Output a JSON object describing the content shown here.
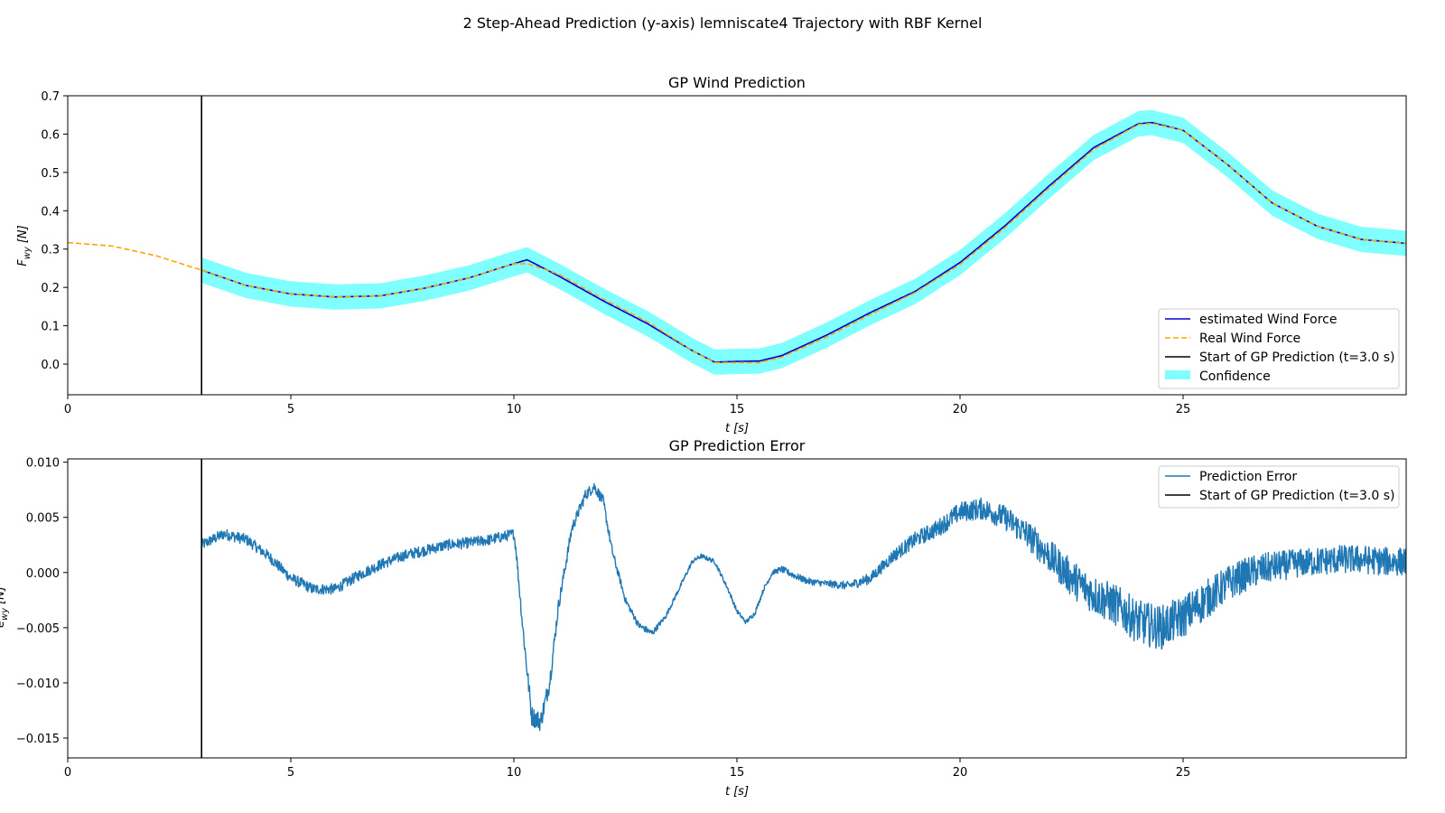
{
  "suptitle": "2 Step-Ahead Prediction (y-axis) lemniscate4 Trajectory with RBF Kernel",
  "colors": {
    "estimated": "#0000cd",
    "real": "#ffa500",
    "confidence": "#00ffff",
    "start_line": "#000000",
    "error": "#1f77b4"
  },
  "chart_data": [
    {
      "type": "line",
      "title": "GP Wind Prediction",
      "xlabel_var": "t",
      "xlabel_unit": "[s]",
      "ylabel_var": "F",
      "ylabel_sub": "wy",
      "ylabel_unit": "[N]",
      "xlim": [
        0,
        30
      ],
      "ylim": [
        -0.08,
        0.7
      ],
      "xticks": [
        0,
        5,
        10,
        15,
        20,
        25
      ],
      "xtick_labels": [
        "0",
        "5",
        "10",
        "15",
        "20",
        "25"
      ],
      "yticks": [
        0.0,
        0.1,
        0.2,
        0.3,
        0.4,
        0.5,
        0.6,
        0.7
      ],
      "ytick_labels": [
        "0.0",
        "0.1",
        "0.2",
        "0.3",
        "0.4",
        "0.5",
        "0.6",
        "0.7"
      ],
      "grid": false,
      "legend_position": "lower right",
      "start_time": 3.0,
      "confidence_halfwidth": 0.033,
      "series": [
        {
          "name": "estimated Wind Force",
          "style": "solid",
          "x": [
            3,
            4,
            5,
            6,
            7,
            8,
            9,
            10,
            10.3,
            11,
            12,
            13,
            14,
            14.5,
            15,
            15.5,
            16,
            17,
            18,
            19,
            20,
            21,
            22,
            23,
            24,
            24.3,
            25,
            26,
            27,
            28,
            29,
            30
          ],
          "y": [
            0.245,
            0.205,
            0.183,
            0.175,
            0.178,
            0.198,
            0.225,
            0.262,
            0.272,
            0.23,
            0.165,
            0.105,
            0.035,
            0.005,
            0.007,
            0.008,
            0.022,
            0.075,
            0.135,
            0.19,
            0.265,
            0.36,
            0.465,
            0.565,
            0.627,
            0.63,
            0.61,
            0.52,
            0.42,
            0.36,
            0.325,
            0.315
          ]
        },
        {
          "name": "Real Wind Force",
          "style": "dashed",
          "x": [
            0,
            1,
            2,
            3,
            4,
            5,
            6,
            7,
            8,
            9,
            10,
            10.3,
            11,
            12,
            13,
            14,
            14.5,
            15,
            15.5,
            16,
            17,
            18,
            19,
            20,
            21,
            22,
            23,
            24,
            24.3,
            25,
            26,
            27,
            28,
            29,
            30
          ],
          "y": [
            0.317,
            0.308,
            0.282,
            0.245,
            0.205,
            0.183,
            0.175,
            0.178,
            0.198,
            0.225,
            0.262,
            0.262,
            0.235,
            0.17,
            0.11,
            0.035,
            0.004,
            0.004,
            0.004,
            0.018,
            0.07,
            0.13,
            0.187,
            0.26,
            0.355,
            0.46,
            0.56,
            0.625,
            0.628,
            0.61,
            0.52,
            0.42,
            0.36,
            0.325,
            0.315
          ]
        },
        {
          "name": "Start of GP Prediction (t=3.0 s)",
          "style": "vline"
        },
        {
          "name": "Confidence",
          "style": "band"
        }
      ]
    },
    {
      "type": "line",
      "title": "GP Prediction Error",
      "xlabel_var": "t",
      "xlabel_unit": "[s]",
      "ylabel_var": "e",
      "ylabel_sub": "wy",
      "ylabel_unit": "[N]",
      "xlim": [
        0,
        30
      ],
      "ylim": [
        -0.0168,
        0.0103
      ],
      "xticks": [
        0,
        5,
        10,
        15,
        20,
        25
      ],
      "xtick_labels": [
        "0",
        "5",
        "10",
        "15",
        "20",
        "25"
      ],
      "yticks": [
        -0.015,
        -0.01,
        -0.005,
        0.0,
        0.005,
        0.01
      ],
      "ytick_labels": [
        "−0.015",
        "−0.010",
        "−0.005",
        "0.000",
        "0.005",
        "0.010"
      ],
      "grid": false,
      "legend_position": "upper right",
      "start_time": 3.0,
      "series": [
        {
          "name": "Prediction Error",
          "x": [
            3,
            3.5,
            4,
            4.5,
            5,
            5.5,
            6,
            6.5,
            7,
            7.5,
            8,
            8.5,
            9,
            9.5,
            10,
            10.05,
            10.2,
            10.4,
            10.6,
            10.8,
            11,
            11.3,
            11.6,
            11.8,
            12,
            12.2,
            12.5,
            12.8,
            13.1,
            13.4,
            13.7,
            14,
            14.2,
            14.5,
            14.8,
            15,
            15.2,
            15.4,
            15.6,
            15.8,
            16,
            16.3,
            16.6,
            17,
            17.5,
            18,
            18.5,
            19,
            19.5,
            20,
            20.5,
            21,
            21.5,
            22,
            22.5,
            23,
            23.5,
            24,
            24.5,
            25,
            25.5,
            26,
            26.5,
            27,
            27.5,
            28,
            28.5,
            29,
            29.5,
            30
          ],
          "y": [
            0.0025,
            0.0035,
            0.003,
            0.0015,
            -0.0005,
            -0.0015,
            -0.0015,
            -0.0003,
            0.0007,
            0.0015,
            0.002,
            0.0025,
            0.0027,
            0.003,
            0.0035,
            0.002,
            -0.005,
            -0.013,
            -0.0135,
            -0.01,
            -0.003,
            0.004,
            0.007,
            0.0078,
            0.0065,
            0.002,
            -0.0025,
            -0.0048,
            -0.0055,
            -0.004,
            -0.0015,
            0.001,
            0.0015,
            0.001,
            -0.0015,
            -0.0035,
            -0.0045,
            -0.0037,
            -0.0015,
            0.0,
            0.0003,
            -0.0003,
            -0.0008,
            -0.001,
            -0.0012,
            -0.0005,
            0.0015,
            0.003,
            0.004,
            0.0055,
            0.0058,
            0.005,
            0.0035,
            0.0015,
            -0.0005,
            -0.002,
            -0.003,
            -0.0045,
            -0.005,
            -0.004,
            -0.0025,
            -0.001,
            0.0,
            0.0005,
            0.0008,
            0.001,
            0.0012,
            0.0012,
            0.001,
            0.001
          ],
          "noise": [
            0.0005,
            0.0005,
            0.0005,
            0.0005,
            0.0005,
            0.0005,
            0.0005,
            0.0005,
            0.0005,
            0.0005,
            0.0005,
            0.0005,
            0.0005,
            0.0005,
            0.0005,
            0.0005,
            0.0007,
            0.0009,
            0.0009,
            0.0008,
            0.0006,
            0.0005,
            0.0005,
            0.0005,
            0.0005,
            0.0004,
            0.0003,
            0.0003,
            0.0003,
            0.0002,
            0.0002,
            0.0002,
            0.0002,
            0.0002,
            0.0002,
            0.0002,
            0.0002,
            0.0002,
            0.0002,
            0.0002,
            0.0003,
            0.0003,
            0.0003,
            0.0003,
            0.0004,
            0.0005,
            0.0006,
            0.0007,
            0.0008,
            0.0009,
            0.001,
            0.0011,
            0.0013,
            0.0015,
            0.0017,
            0.0018,
            0.0019,
            0.002,
            0.002,
            0.0019,
            0.0018,
            0.0016,
            0.0015,
            0.0014,
            0.0013,
            0.0013,
            0.0013,
            0.0013,
            0.0013,
            0.0013
          ]
        },
        {
          "name": "Start of GP Prediction (t=3.0 s)",
          "style": "vline"
        }
      ]
    }
  ]
}
